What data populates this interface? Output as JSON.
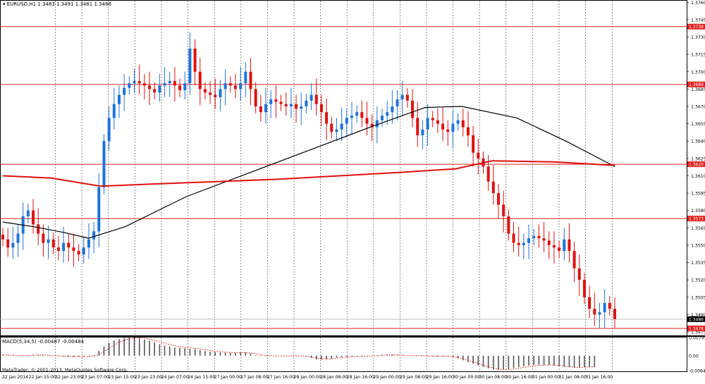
{
  "header": {
    "symbol_info": "EURUSD,H1  1.3483 1.3491 1.3481 1.3486",
    "indicator_info": "MACD(5,34,5) -0.00487 -0.00484",
    "copyright": "MetaTrader, © 2001-2013, MetaQuotes Software Corp."
  },
  "colors": {
    "background": "#ffffff",
    "bull_candle": "#1e73d9",
    "bear_candle": "#e01010",
    "level_line": "#e02020",
    "ma_fast": "#000000",
    "ma_slow": "#e01010",
    "macd_hist": "#555555",
    "macd_signal": "#e01010"
  },
  "price_axis": {
    "ticks": [
      "1.3760",
      "1.3745",
      "1.3730",
      "1.3715",
      "1.3700",
      "1.3685",
      "1.3670",
      "1.3655",
      "1.3640",
      "1.3625",
      "1.3610",
      "1.3595",
      "1.3580",
      "1.3565",
      "1.3550",
      "1.3535",
      "1.3520",
      "1.3505",
      "1.3490",
      "1.3475"
    ],
    "range": [
      1.3472,
      1.3762
    ]
  },
  "macd_axis": {
    "ticks": [
      "0.00795",
      "0.00",
      "-0.00642"
    ],
    "range": [
      -0.0068,
      0.0082
    ]
  },
  "time_axis": {
    "labels": [
      "22 Jan 2014",
      "22 Jan 15:00",
      "22 Jan 23:00",
      "23 Jan 07:00",
      "23 Jan 15:00",
      "23 Jan 23:00",
      "24 Jan 07:00",
      "24 Jan 15:00",
      "27 Jan 00:00",
      "27 Jan 08:00",
      "27 Jan 16:00",
      "28 Jan 00:00",
      "28 Jan 08:00",
      "28 Jan 16:00",
      "29 Jan 00:00",
      "29 Jan 08:00",
      "29 Jan 16:00",
      "30 Jan 00:00",
      "30 Jan 08:00",
      "30 Jan 16:00",
      "31 Jan 00:00",
      "31 Jan 08:00",
      "31 Jan 16:00"
    ]
  },
  "levels": [
    {
      "price": 1.3739,
      "label": "1.3739"
    },
    {
      "price": 1.3689,
      "label": "1.3689"
    },
    {
      "price": 1.362,
      "label": "1.3620"
    },
    {
      "price": 1.3573,
      "label": "1.3573"
    },
    {
      "price": 1.3478,
      "label": "1.3478"
    }
  ],
  "current_price": {
    "price": 1.3486,
    "label": "1.3486"
  },
  "chart_data": [
    {
      "type": "candlestick",
      "title": "EURUSD,H1",
      "close_path": [
        1.3555,
        1.3548,
        1.3552,
        1.356,
        1.3575,
        1.358,
        1.3568,
        1.356,
        1.3552,
        1.3555,
        1.3548,
        1.3545,
        1.3552,
        1.3548,
        1.3545,
        1.3542,
        1.3548,
        1.3555,
        1.3562,
        1.36,
        1.364,
        1.366,
        1.3672,
        1.368,
        1.3686,
        1.369,
        1.3692,
        1.369,
        1.3688,
        1.3685,
        1.3682,
        1.3688,
        1.369,
        1.3692,
        1.3688,
        1.3684,
        1.369,
        1.372,
        1.37,
        1.3685,
        1.3682,
        1.368,
        1.3678,
        1.3685,
        1.369,
        1.3688,
        1.3685,
        1.369,
        1.37,
        1.3685,
        1.367,
        1.3665,
        1.3672,
        1.3676,
        1.3674,
        1.3672,
        1.367,
        1.3672,
        1.3668,
        1.367,
        1.3675,
        1.368,
        1.3672,
        1.3665,
        1.3655,
        1.3648,
        1.365,
        1.3655,
        1.366,
        1.3662,
        1.3665,
        1.366,
        1.3655,
        1.3652,
        1.3658,
        1.3662,
        1.3665,
        1.367,
        1.3676,
        1.368,
        1.3675,
        1.366,
        1.3645,
        1.365,
        1.366,
        1.3658,
        1.3655,
        1.365,
        1.3648,
        1.3655,
        1.3658,
        1.3652,
        1.3645,
        1.363,
        1.3625,
        1.3618,
        1.3605,
        1.3595,
        1.3585,
        1.3575,
        1.356,
        1.3552,
        1.355,
        1.3552,
        1.3556,
        1.3558,
        1.3556,
        1.3554,
        1.355,
        1.3548,
        1.3545,
        1.3555,
        1.3545,
        1.353,
        1.352,
        1.3505,
        1.3495,
        1.349,
        1.3492,
        1.35,
        1.3495,
        1.3486
      ]
    },
    {
      "type": "line",
      "series": [
        {
          "kind": "ma_fast",
          "values_at_path_fraction": [
            [
              0,
              1.357
            ],
            [
              0.05,
              1.3566
            ],
            [
              0.1,
              1.3561
            ],
            [
              0.14,
              1.3556
            ],
            [
              0.2,
              1.3566
            ],
            [
              0.3,
              1.3592
            ],
            [
              0.4,
              1.3612
            ],
            [
              0.5,
              1.3632
            ],
            [
              0.6,
              1.3652
            ],
            [
              0.69,
              1.3669
            ],
            [
              0.75,
              1.367
            ],
            [
              0.84,
              1.366
            ],
            [
              0.92,
              1.364
            ],
            [
              1.0,
              1.3618
            ]
          ]
        },
        {
          "kind": "ma_slow",
          "values_at_path_fraction": [
            [
              0,
              1.361
            ],
            [
              0.08,
              1.3608
            ],
            [
              0.16,
              1.3601
            ],
            [
              0.25,
              1.3603
            ],
            [
              0.35,
              1.3605
            ],
            [
              0.45,
              1.3607
            ],
            [
              0.55,
              1.361
            ],
            [
              0.65,
              1.3613
            ],
            [
              0.74,
              1.3616
            ],
            [
              0.8,
              1.3623
            ],
            [
              0.9,
              1.3622
            ],
            [
              1.0,
              1.3619
            ]
          ]
        }
      ]
    },
    {
      "type": "bar",
      "title": "MACD(5,34,5)",
      "hist": [
        0.0003,
        0.0002,
        0.0001,
        0.0,
        -0.0001,
        0.0002,
        0.0004,
        0.0004,
        0.0003,
        0.0001,
        0.0,
        -0.0002,
        -0.0003,
        -0.0004,
        -0.0005,
        -0.0004,
        -0.0003,
        -0.0002,
        0.0002,
        0.002,
        0.004,
        0.0055,
        0.0066,
        0.0072,
        0.0077,
        0.008,
        0.0079,
        0.0076,
        0.007,
        0.0064,
        0.0058,
        0.005,
        0.0044,
        0.004,
        0.0036,
        0.0034,
        0.0032,
        0.003,
        0.0028,
        0.0024,
        0.002,
        0.0017,
        0.0015,
        0.0014,
        0.0013,
        0.0012,
        0.0012,
        0.0013,
        0.0014,
        0.001,
        0.0003,
        -0.0002,
        -0.0002,
        -0.0001,
        -0.0001,
        -0.0001,
        -0.0001,
        -0.0001,
        -0.0001,
        -0.0001,
        -0.0003,
        -0.001,
        -0.0016,
        -0.0017,
        -0.0015,
        -0.0012,
        -0.0008,
        -0.0005,
        -0.0004,
        -0.0003,
        -0.0002,
        -0.0002,
        -0.0001,
        0.0,
        0.0002,
        0.0004,
        0.0005,
        0.0004,
        0.0002,
        0.0001,
        0.0,
        0.0,
        0.0,
        -0.0001,
        -0.0002,
        -0.0003,
        -0.0003,
        -0.0003,
        -0.0002,
        -0.0005,
        -0.0012,
        -0.002,
        -0.0028,
        -0.0035,
        -0.0042,
        -0.0049,
        -0.0055,
        -0.006,
        -0.0062,
        -0.0061,
        -0.0058,
        -0.0054,
        -0.005,
        -0.0046,
        -0.0043,
        -0.0041,
        -0.004,
        -0.004,
        -0.004,
        -0.0042,
        -0.0045,
        -0.0048,
        -0.005,
        -0.0052,
        -0.0052,
        -0.005,
        -0.0049,
        -0.0049
      ],
      "signal": [
        0.0004,
        0.0003,
        0.0002,
        0.0001,
        0.0,
        0.0001,
        0.0002,
        0.0003,
        0.0003,
        0.0002,
        0.0001,
        -0.0001,
        -0.0002,
        -0.0003,
        -0.0004,
        -0.0004,
        -0.0004,
        -0.0003,
        -0.0002,
        0.0005,
        0.0018,
        0.0032,
        0.0046,
        0.0058,
        0.0066,
        0.0072,
        0.0076,
        0.0078,
        0.0076,
        0.0072,
        0.0066,
        0.006,
        0.0054,
        0.0048,
        0.0043,
        0.0039,
        0.0036,
        0.0034,
        0.0032,
        0.0029,
        0.0026,
        0.0022,
        0.0019,
        0.0017,
        0.0015,
        0.0014,
        0.0013,
        0.0013,
        0.0013,
        0.0012,
        0.0009,
        0.0004,
        0.0001,
        0.0,
        -0.0001,
        -0.0001,
        -0.0001,
        -0.0001,
        -0.0001,
        -0.0001,
        -0.0002,
        -0.0006,
        -0.001,
        -0.0013,
        -0.0014,
        -0.0013,
        -0.0011,
        -0.0008,
        -0.0006,
        -0.0005,
        -0.0004,
        -0.0003,
        -0.0002,
        -0.0001,
        0.0,
        0.0002,
        0.0003,
        0.0003,
        0.0003,
        0.0002,
        0.0001,
        0.0,
        0.0,
        0.0,
        -0.0001,
        -0.0002,
        -0.0002,
        -0.0003,
        -0.0003,
        -0.0004,
        -0.0008,
        -0.0013,
        -0.002,
        -0.0027,
        -0.0034,
        -0.0041,
        -0.0048,
        -0.0054,
        -0.0058,
        -0.006,
        -0.006,
        -0.0058,
        -0.0055,
        -0.0051,
        -0.0048,
        -0.0045,
        -0.0043,
        -0.0041,
        -0.004,
        -0.0041,
        -0.0043,
        -0.0045,
        -0.0048,
        -0.005,
        -0.0051,
        -0.005,
        -0.0049,
        -0.0048
      ]
    }
  ]
}
